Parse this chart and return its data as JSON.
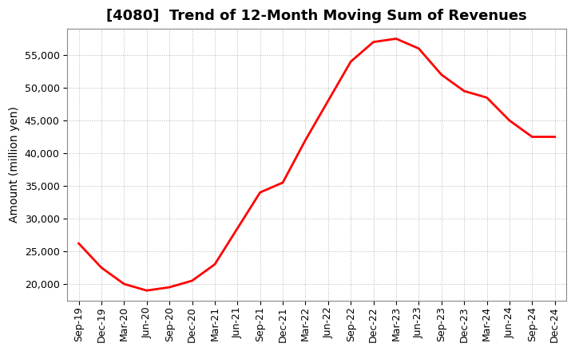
{
  "title": "[4080]  Trend of 12-Month Moving Sum of Revenues",
  "ylabel": "Amount (million yen)",
  "line_color": "#FF0000",
  "line_width": 2.0,
  "background_color": "#FFFFFF",
  "plot_bg_color": "#FFFFFF",
  "grid_color": "#999999",
  "tick_labels": [
    "Sep-19",
    "Dec-19",
    "Mar-20",
    "Jun-20",
    "Sep-20",
    "Dec-20",
    "Mar-21",
    "Jun-21",
    "Sep-21",
    "Dec-21",
    "Mar-22",
    "Jun-22",
    "Sep-22",
    "Dec-22",
    "Mar-23",
    "Jun-23",
    "Sep-23",
    "Dec-23",
    "Mar-24",
    "Jun-24",
    "Sep-24",
    "Dec-24"
  ],
  "values": [
    26200,
    22500,
    20000,
    19000,
    19500,
    20500,
    23000,
    28500,
    34000,
    35500,
    42000,
    48000,
    54000,
    57000,
    57500,
    56000,
    52000,
    49500,
    48500,
    45000,
    42500,
    42500
  ],
  "ylim": [
    17500,
    59000
  ],
  "yticks": [
    20000,
    25000,
    30000,
    35000,
    40000,
    45000,
    50000,
    55000
  ],
  "title_fontsize": 13,
  "ylabel_fontsize": 10,
  "tick_fontsize": 9
}
